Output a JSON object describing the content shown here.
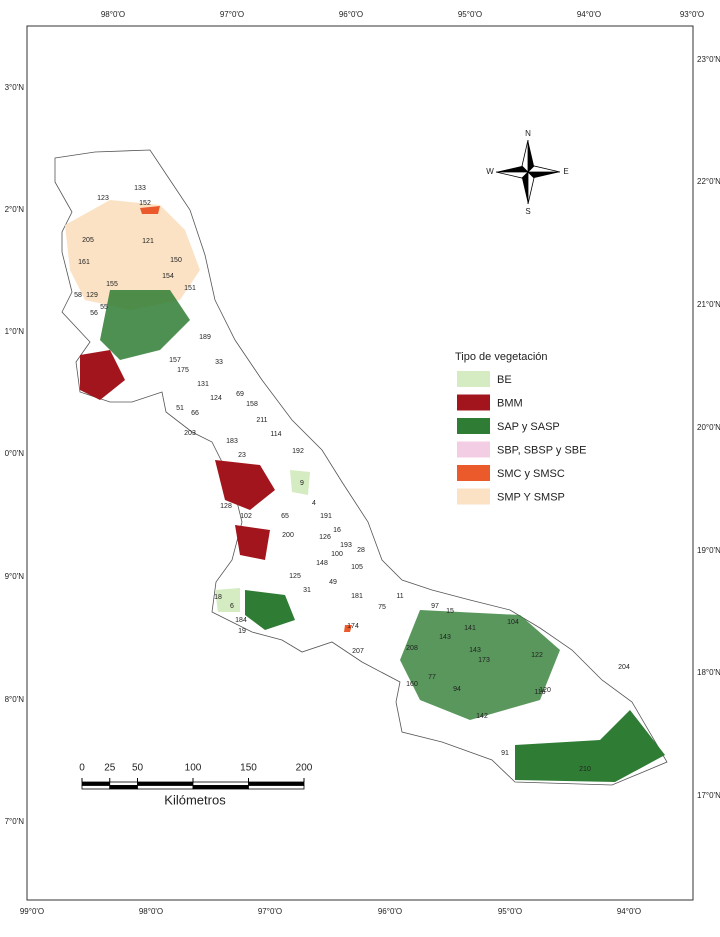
{
  "graticule": {
    "top": [
      "98°0'O",
      "97°0'O",
      "96°0'O",
      "95°0'O",
      "94°0'O",
      "93°0'O"
    ],
    "bottom": [
      "99°0'O",
      "98°0'O",
      "97°0'O",
      "96°0'O",
      "95°0'O",
      "94°0'O"
    ],
    "left": [
      "3°0'N",
      "2°0'N",
      "1°0'N",
      "0°0'N",
      "9°0'N",
      "8°0'N",
      "7°0'N"
    ],
    "right": [
      "23°0'N",
      "22°0'N",
      "21°0'N",
      "20°0'N",
      "19°0'N",
      "18°0'N",
      "17°0'N"
    ]
  },
  "compass": {
    "north": "N",
    "south": "S",
    "east": "E",
    "west": "W"
  },
  "legend": {
    "title": "Tipo de vegetación",
    "items": [
      {
        "label": "BE",
        "color": "#d5ebc2"
      },
      {
        "label": "BMM",
        "color": "#a3151c"
      },
      {
        "label": "SAP y SASP",
        "color": "#2f7d34"
      },
      {
        "label": "SBP, SBSP y SBE",
        "color": "#f3cde3"
      },
      {
        "label": "SMC y SMSC",
        "color": "#ea5a2a"
      },
      {
        "label": "SMP Y SMSP",
        "color": "#fbe2c4"
      }
    ]
  },
  "scale": {
    "ticks": [
      0,
      25,
      50,
      100,
      150,
      200
    ],
    "unit": "Kilómetros"
  },
  "municipality_labels": [
    "133",
    "152",
    "123",
    "121",
    "205",
    "150",
    "161",
    "154",
    "155",
    "151",
    "58",
    "129",
    "56",
    "55",
    "189",
    "157",
    "175",
    "33",
    "131",
    "69",
    "124",
    "158",
    "51",
    "66",
    "203",
    "211",
    "114",
    "183",
    "23",
    "192",
    "9",
    "128",
    "4",
    "191",
    "65",
    "102",
    "16",
    "126",
    "193",
    "28",
    "200",
    "125",
    "100",
    "148",
    "105",
    "31",
    "49",
    "181",
    "11",
    "75",
    "97",
    "15",
    "141",
    "104",
    "174",
    "143",
    "143",
    "207",
    "208",
    "173",
    "160",
    "77",
    "94",
    "122",
    "204",
    "142",
    "116",
    "120",
    "91",
    "210",
    "184",
    "19",
    "18",
    "6"
  ]
}
